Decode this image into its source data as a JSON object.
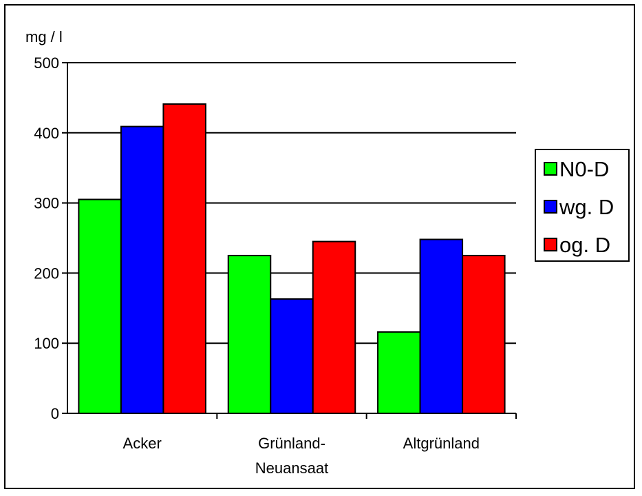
{
  "chart_data": {
    "type": "bar",
    "ylabel": "mg / l",
    "ylim": [
      0,
      500
    ],
    "yticks": [
      0,
      100,
      200,
      300,
      400,
      500
    ],
    "grid": true,
    "legend_position": "right",
    "categories": [
      [
        "Acker"
      ],
      [
        "Grünland-",
        "Neuansaat"
      ],
      [
        "Altgrünland"
      ]
    ],
    "series": [
      {
        "name": "N0-D",
        "color": "#00ff00",
        "values": [
          305,
          225,
          116
        ]
      },
      {
        "name": "wg. D",
        "color": "#0000ff",
        "values": [
          409,
          163,
          248
        ]
      },
      {
        "name": "og. D",
        "color": "#ff0000",
        "values": [
          441,
          245,
          225
        ]
      }
    ]
  }
}
